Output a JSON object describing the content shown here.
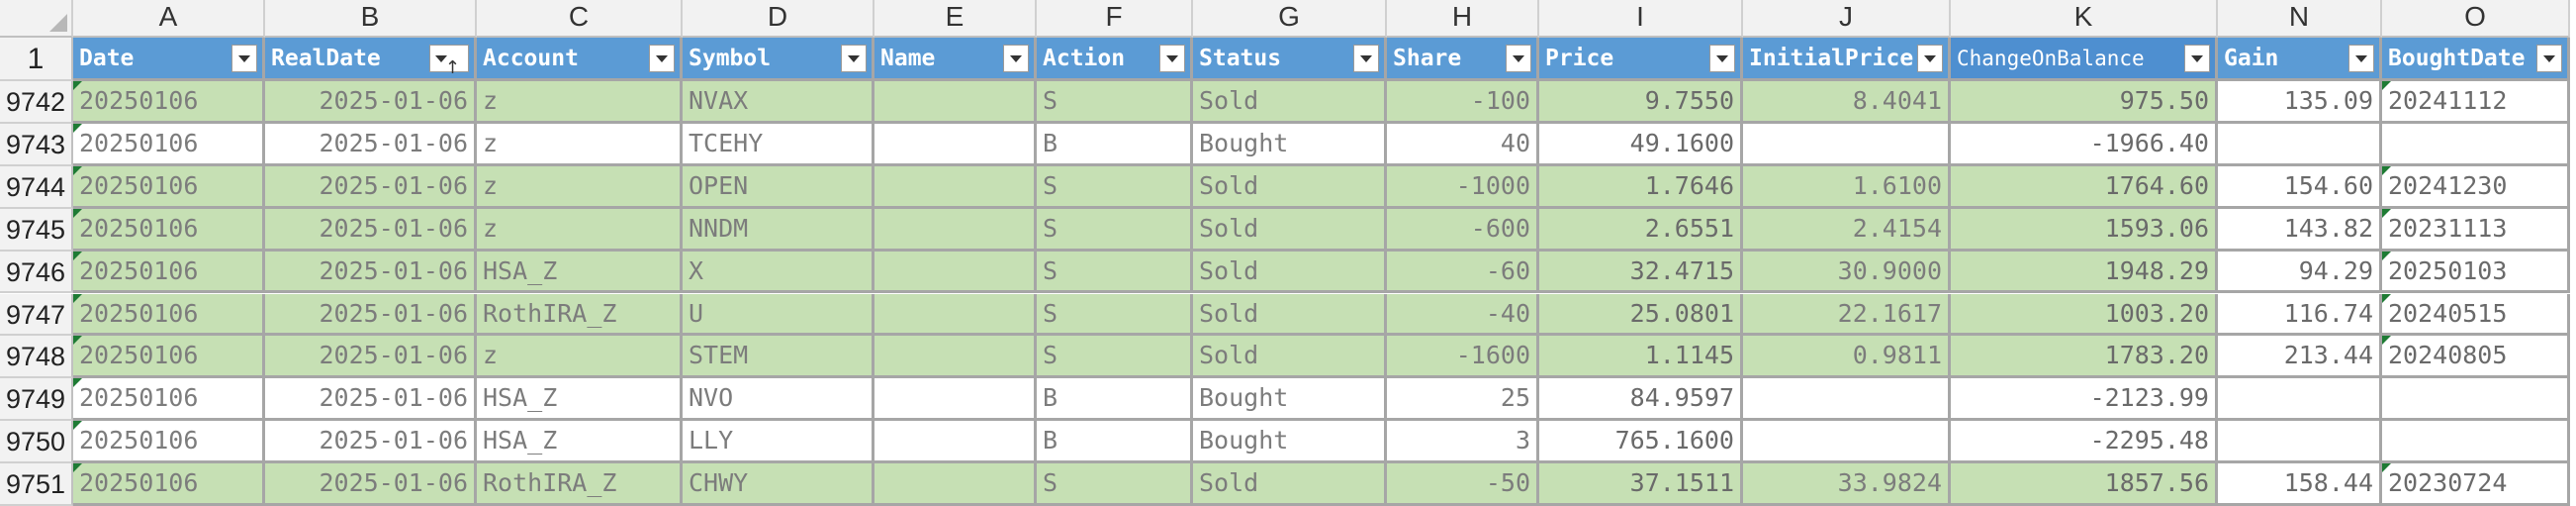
{
  "columns": [
    "A",
    "B",
    "C",
    "D",
    "E",
    "F",
    "G",
    "H",
    "I",
    "J",
    "K",
    "N",
    "O"
  ],
  "header_row_number": "1",
  "headers": [
    "Date",
    "RealDate",
    "Account",
    "Symbol",
    "Name",
    "Action",
    "Status",
    "Share",
    "Price",
    "InitialPrice",
    "ChangeOnBalance",
    "Gain",
    "BoughtDate"
  ],
  "sort_indicator": "↑",
  "rows": [
    {
      "num": "9742",
      "date": "20250106",
      "realdate": "2025-01-06",
      "account": "z",
      "symbol": "NVAX",
      "name": "",
      "action": "S",
      "status": "Sold",
      "share": "-100",
      "price": "9.7550",
      "initial": "8.4041",
      "change": "975.50",
      "gain": "135.09",
      "bought": "20241112",
      "fill": "green"
    },
    {
      "num": "9743",
      "date": "20250106",
      "realdate": "2025-01-06",
      "account": "z",
      "symbol": "TCEHY",
      "name": "",
      "action": "B",
      "status": "Bought",
      "share": "40",
      "price": "49.1600",
      "initial": "",
      "change": "-1966.40",
      "gain": "",
      "bought": "",
      "fill": "white"
    },
    {
      "num": "9744",
      "date": "20250106",
      "realdate": "2025-01-06",
      "account": "z",
      "symbol": "OPEN",
      "name": "",
      "action": "S",
      "status": "Sold",
      "share": "-1000",
      "price": "1.7646",
      "initial": "1.6100",
      "change": "1764.60",
      "gain": "154.60",
      "bought": "20241230",
      "fill": "green"
    },
    {
      "num": "9745",
      "date": "20250106",
      "realdate": "2025-01-06",
      "account": "z",
      "symbol": "NNDM",
      "name": "",
      "action": "S",
      "status": "Sold",
      "share": "-600",
      "price": "2.6551",
      "initial": "2.4154",
      "change": "1593.06",
      "gain": "143.82",
      "bought": "20231113",
      "fill": "green"
    },
    {
      "num": "9746",
      "date": "20250106",
      "realdate": "2025-01-06",
      "account": "HSA_Z",
      "symbol": "X",
      "name": "",
      "action": "S",
      "status": "Sold",
      "share": "-60",
      "price": "32.4715",
      "initial": "30.9000",
      "change": "1948.29",
      "gain": "94.29",
      "bought": "20250103",
      "fill": "green"
    },
    {
      "num": "9747",
      "date": "20250106",
      "realdate": "2025-01-06",
      "account": "RothIRA_Z",
      "symbol": "U",
      "name": "",
      "action": "S",
      "status": "Sold",
      "share": "-40",
      "price": "25.0801",
      "initial": "22.1617",
      "change": "1003.20",
      "gain": "116.74",
      "bought": "20240515",
      "fill": "green"
    },
    {
      "num": "9748",
      "date": "20250106",
      "realdate": "2025-01-06",
      "account": "z",
      "symbol": "STEM",
      "name": "",
      "action": "S",
      "status": "Sold",
      "share": "-1600",
      "price": "1.1145",
      "initial": "0.9811",
      "change": "1783.20",
      "gain": "213.44",
      "bought": "20240805",
      "fill": "green"
    },
    {
      "num": "9749",
      "date": "20250106",
      "realdate": "2025-01-06",
      "account": "HSA_Z",
      "symbol": "NVO",
      "name": "",
      "action": "B",
      "status": "Bought",
      "share": "25",
      "price": "84.9597",
      "initial": "",
      "change": "-2123.99",
      "gain": "",
      "bought": "",
      "fill": "white"
    },
    {
      "num": "9750",
      "date": "20250106",
      "realdate": "2025-01-06",
      "account": "HSA_Z",
      "symbol": "LLY",
      "name": "",
      "action": "B",
      "status": "Bought",
      "share": "3",
      "price": "765.1600",
      "initial": "",
      "change": "-2295.48",
      "gain": "",
      "bought": "",
      "fill": "white"
    },
    {
      "num": "9751",
      "date": "20250106",
      "realdate": "2025-01-06",
      "account": "RothIRA_Z",
      "symbol": "CHWY",
      "name": "",
      "action": "S",
      "status": "Sold",
      "share": "-50",
      "price": "37.1511",
      "initial": "33.9824",
      "change": "1857.56",
      "gain": "158.44",
      "bought": "20230724",
      "fill": "green"
    }
  ],
  "colors": {
    "header_blue": "#5b9bd5",
    "row_green": "#c6e0b4",
    "grid": "#a6a6a6",
    "gridline_marker": "#1e7b34"
  }
}
